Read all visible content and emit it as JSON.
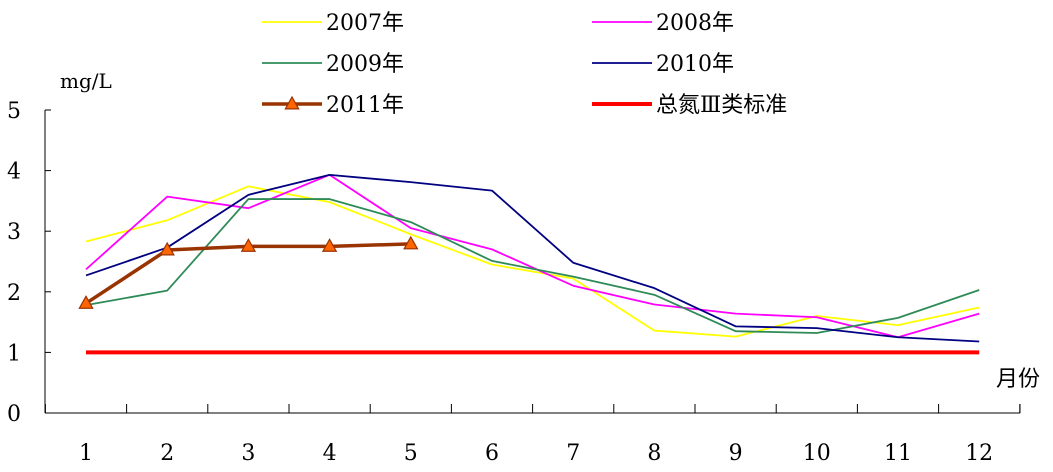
{
  "chart_data": {
    "type": "line",
    "ylabel": "mg/L",
    "xlabel": "月份",
    "ylim": [
      0,
      5
    ],
    "yticks": [
      0,
      1,
      2,
      3,
      4,
      5
    ],
    "categories": [
      "1",
      "2",
      "3",
      "4",
      "5",
      "6",
      "7",
      "8",
      "9",
      "10",
      "11",
      "12"
    ],
    "grid": false,
    "legend_position": "top",
    "series": [
      {
        "name": "2007年",
        "color": "#ffff00",
        "marker": "none",
        "values": [
          2.83,
          3.18,
          3.74,
          3.48,
          2.95,
          2.45,
          2.22,
          1.36,
          1.26,
          1.6,
          1.45,
          1.74
        ]
      },
      {
        "name": "2008年",
        "color": "#ff00ff",
        "marker": "none",
        "values": [
          2.37,
          3.57,
          3.38,
          3.93,
          3.05,
          2.7,
          2.1,
          1.79,
          1.64,
          1.58,
          1.25,
          1.64
        ]
      },
      {
        "name": "2009年",
        "color": "#2e8b57",
        "marker": "none",
        "values": [
          1.78,
          2.02,
          3.53,
          3.53,
          3.15,
          2.51,
          2.25,
          1.95,
          1.35,
          1.32,
          1.57,
          2.03
        ]
      },
      {
        "name": "2010年",
        "color": "#000080",
        "marker": "none",
        "values": [
          2.27,
          2.73,
          3.6,
          3.93,
          3.81,
          3.67,
          2.48,
          2.06,
          1.43,
          1.4,
          1.25,
          1.18
        ]
      },
      {
        "name": "2011年",
        "color": "#993300",
        "marker": "triangle",
        "marker_fill": "#ff6600",
        "values": [
          1.81,
          2.69,
          2.75,
          2.75,
          2.79,
          null,
          null,
          null,
          null,
          null,
          null,
          null
        ]
      },
      {
        "name": "总氮Ⅲ类标准",
        "color": "#ff0000",
        "marker": "none",
        "values": [
          1,
          1,
          1,
          1,
          1,
          1,
          1,
          1,
          1,
          1,
          1,
          1
        ]
      }
    ]
  }
}
